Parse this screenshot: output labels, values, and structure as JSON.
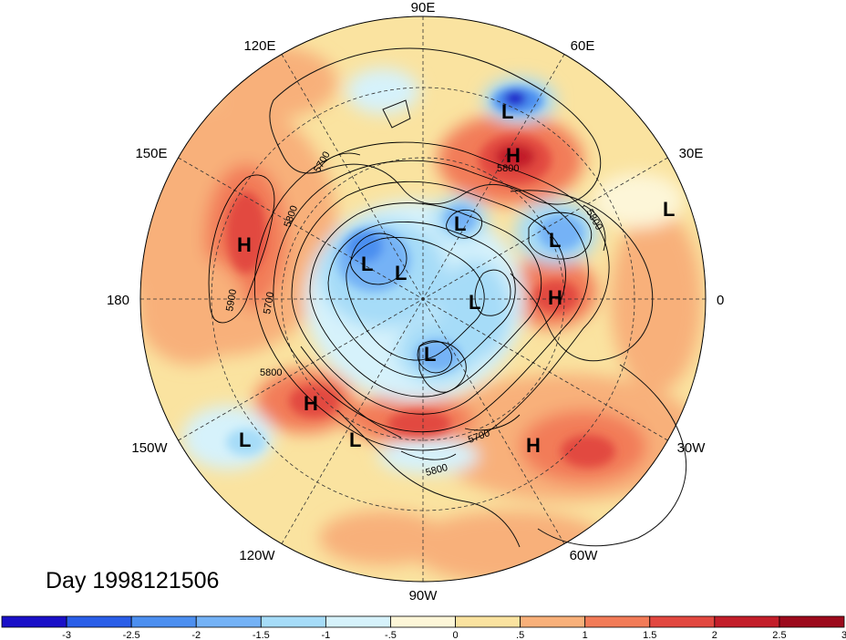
{
  "map": {
    "projection": "north-polar-stereographic",
    "longitude_labels": [
      {
        "text": "90E",
        "lon": 90
      },
      {
        "text": "60E",
        "lon": 60
      },
      {
        "text": "30E",
        "lon": 30
      },
      {
        "text": "0",
        "lon": 0
      },
      {
        "text": "30W",
        "lon": -30
      },
      {
        "text": "60W",
        "lon": -60
      },
      {
        "text": "90W",
        "lon": -90
      },
      {
        "text": "120W",
        "lon": -120
      },
      {
        "text": "150W",
        "lon": -150
      },
      {
        "text": "180",
        "lon": 180
      },
      {
        "text": "150E",
        "lon": 150
      },
      {
        "text": "120E",
        "lon": 120
      }
    ],
    "contour_labels": [
      "5700",
      "5800",
      "5900",
      "5800",
      "5700",
      "5800",
      "5700",
      "5800",
      "5800"
    ],
    "markers": [
      {
        "type": "L",
        "region": "siberia-north"
      },
      {
        "type": "H",
        "region": "western-siberia"
      },
      {
        "type": "L",
        "region": "europe-east"
      },
      {
        "type": "H",
        "region": "pacific-north"
      },
      {
        "type": "L",
        "region": "arctic-central"
      },
      {
        "type": "L",
        "region": "north-asia"
      },
      {
        "type": "L",
        "region": "north-asia-2"
      },
      {
        "type": "L",
        "region": "scandinavia"
      },
      {
        "type": "L",
        "region": "greenland"
      },
      {
        "type": "H",
        "region": "north-atlantic"
      },
      {
        "type": "L",
        "region": "canada-arctic"
      },
      {
        "type": "H",
        "region": "gulf-alaska"
      },
      {
        "type": "L",
        "region": "pacific-east"
      },
      {
        "type": "L",
        "region": "west-coast-na"
      },
      {
        "type": "H",
        "region": "atlantic-central"
      }
    ]
  },
  "title": "Day 1998121506",
  "colorbar": {
    "colors": [
      "#1a10c8",
      "#2a5ee8",
      "#4c8ff0",
      "#74b2f6",
      "#a6dcf8",
      "#d6f2fb",
      "#fdf6d8",
      "#fae3a0",
      "#f8b07a",
      "#f27b58",
      "#e24840",
      "#c31e2a",
      "#9c0a1c"
    ],
    "tick_labels": [
      "-3",
      "-2.5",
      "-2",
      "-1.5",
      "-1",
      "-.5",
      "0",
      ".5",
      "1",
      "1.5",
      "2",
      "2.5",
      "3"
    ]
  }
}
